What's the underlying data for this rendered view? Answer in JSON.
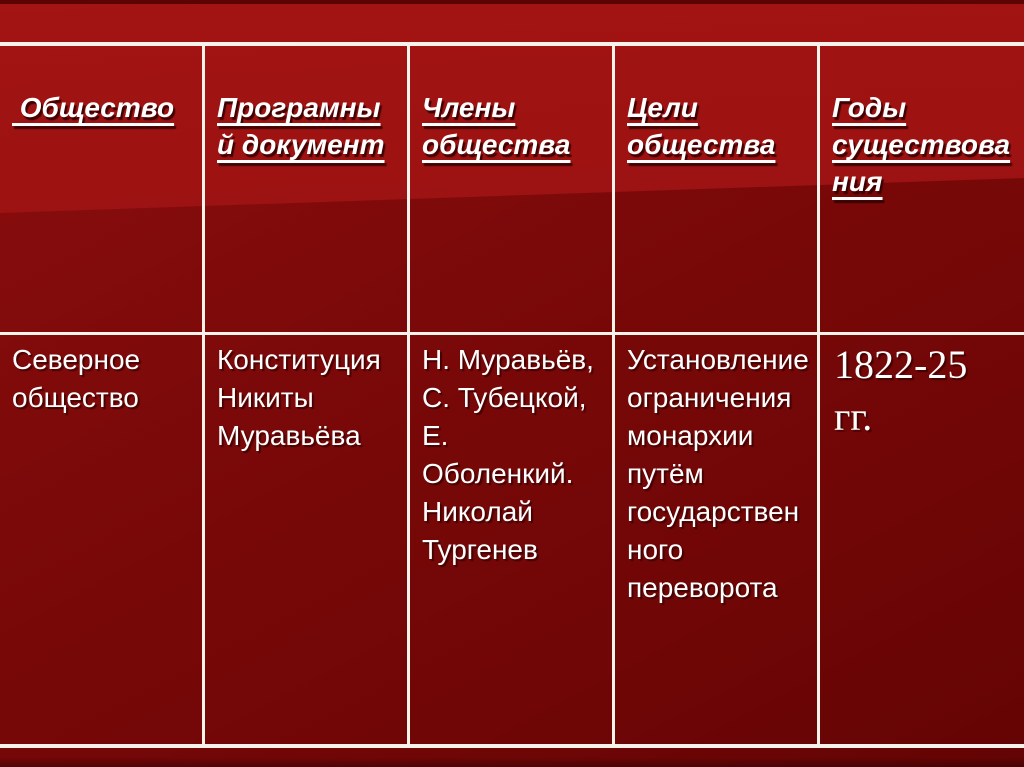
{
  "colors": {
    "background_bright_red": "#a01212",
    "background_dark_maroon": "#7a0808",
    "background_bottom": "#640404",
    "table_line": "#f7f3ea",
    "text": "#ffffff"
  },
  "table": {
    "headers": [
      {
        "id": "society",
        "label": " Общество"
      },
      {
        "id": "program",
        "label": "Програмны\nй документ"
      },
      {
        "id": "members",
        "label": "Члены\nобщества"
      },
      {
        "id": "goals",
        "label": "Цели\nобщества"
      },
      {
        "id": "years",
        "label": "Годы\nсуществова\nния"
      }
    ],
    "rows": [
      {
        "society": "Северное\nобщество",
        "program": "Конституция\nНикиты\nМуравьёва",
        "members": "Н. Муравьёв,\nС. Тубецкой,\nЕ.\nОболенкий.\nНиколай\nТургенев",
        "goals": "Установление\nограничения\nмонархии\nпутём\nгосударствен\nного\nпереворота",
        "years": "1822-25\nгг."
      }
    ]
  }
}
